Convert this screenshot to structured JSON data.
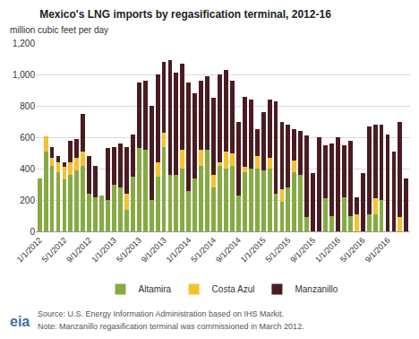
{
  "chart_data": {
    "type": "bar",
    "title": "Mexico's LNG imports by regasification terminal, 2012-16",
    "subtitle": "million cubic feet per day",
    "categories": [
      "1/1/2012",
      null,
      null,
      null,
      "5/1/2012",
      null,
      null,
      null,
      "9/1/2012",
      null,
      null,
      null,
      "1/1/2013",
      null,
      null,
      null,
      "5/1/2013",
      null,
      null,
      null,
      "9/1/2013",
      null,
      null,
      null,
      "1/1/2014",
      null,
      null,
      null,
      "5/1/2014",
      null,
      null,
      null,
      "9/1/2014",
      null,
      null,
      null,
      "1/1/2015",
      null,
      null,
      null,
      "5/1/2015",
      null,
      null,
      null,
      "9/1/2015",
      null,
      null,
      null,
      "1/1/2016",
      null,
      null,
      null,
      "5/1/2016",
      null,
      null,
      null,
      "9/1/2016",
      null,
      null,
      null
    ],
    "series": [
      {
        "name": "Altamira",
        "color": "#86ab43",
        "values": [
          340,
          510,
          420,
          380,
          330,
          360,
          390,
          420,
          240,
          220,
          230,
          200,
          300,
          280,
          140,
          350,
          530,
          520,
          200,
          350,
          540,
          360,
          360,
          400,
          260,
          340,
          420,
          520,
          280,
          420,
          400,
          420,
          230,
          380,
          400,
          400,
          390,
          400,
          240,
          190,
          280,
          380,
          360,
          90,
          0,
          0,
          210,
          100,
          0,
          220,
          100,
          0,
          0,
          110,
          110,
          200,
          0,
          0,
          0,
          0
        ]
      },
      {
        "name": "Costa Azul",
        "color": "#f5c12e",
        "values": [
          0,
          95,
          50,
          60,
          80,
          80,
          80,
          90,
          0,
          0,
          0,
          0,
          0,
          0,
          100,
          0,
          0,
          0,
          0,
          90,
          90,
          0,
          0,
          120,
          0,
          0,
          100,
          0,
          80,
          20,
          110,
          80,
          0,
          30,
          0,
          80,
          0,
          70,
          0,
          80,
          0,
          70,
          0,
          0,
          0,
          0,
          0,
          0,
          0,
          0,
          0,
          110,
          0,
          0,
          100,
          0,
          0,
          0,
          90,
          0
        ]
      },
      {
        "name": "Manzanillo",
        "color": "#4a1c22",
        "values": [
          0,
          0,
          70,
          40,
          30,
          140,
          120,
          240,
          240,
          200,
          0,
          330,
          240,
          280,
          300,
          270,
          420,
          440,
          600,
          560,
          450,
          730,
          650,
          550,
          690,
          540,
          440,
          470,
          490,
          560,
          520,
          460,
          470,
          450,
          440,
          170,
          370,
          370,
          590,
          430,
          400,
          200,
          280,
          520,
          370,
          600,
          340,
          460,
          600,
          330,
          480,
          110,
          370,
          560,
          470,
          480,
          620,
          510,
          610,
          340
        ]
      }
    ],
    "ylim": [
      0,
      1200
    ],
    "yticks": [
      0,
      200,
      400,
      600,
      800,
      {
        "value": 1000,
        "label": "1,000"
      },
      {
        "value": 1200,
        "label": "1,200"
      }
    ],
    "grid": true,
    "stacked": true,
    "legend": "bottom",
    "annotations": [
      {
        "text": "eia"
      },
      {
        "text": "Source: U.S. Energy Information Administration based on IHS Markit."
      },
      {
        "text": "Note: Manzanillo regasification terminal was commissioned in March 2012."
      }
    ]
  }
}
